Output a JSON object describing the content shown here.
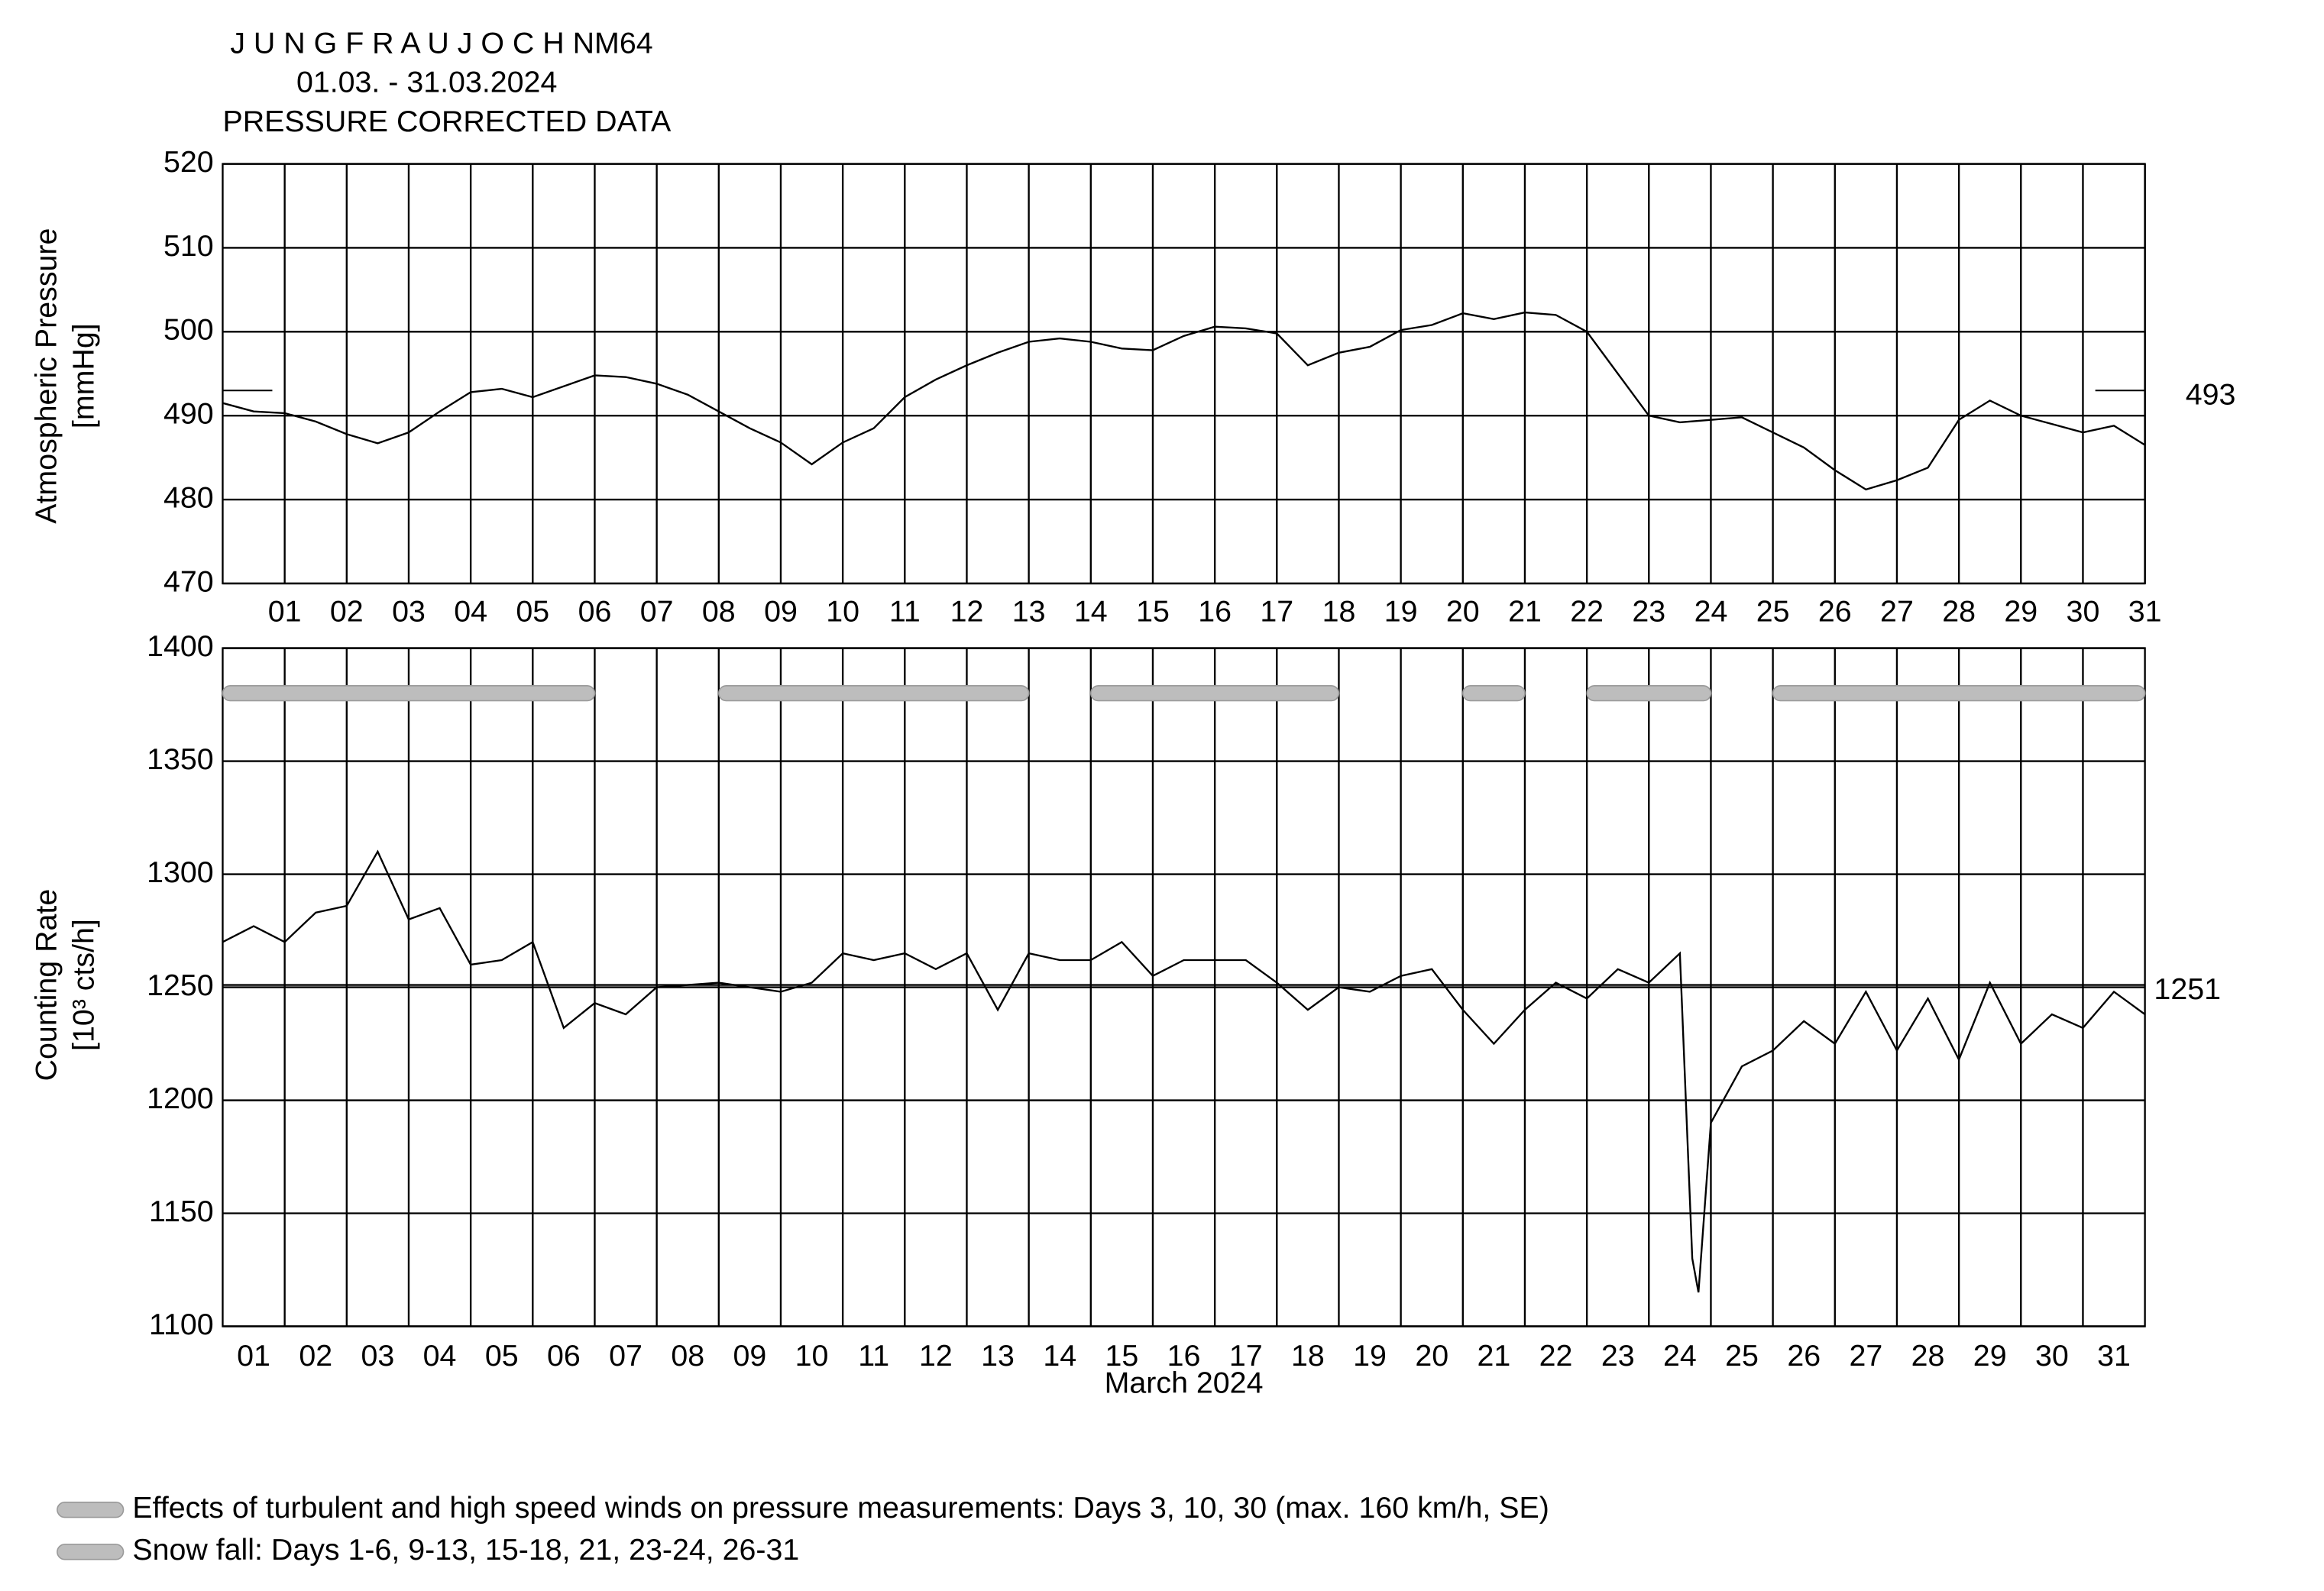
{
  "title": [
    "J U N G F R A U J O C H  NM64",
    "01.03. - 31.03.2024",
    "PRESSURE CORRECTED DATA"
  ],
  "legend": [
    "Effects of turbulent and high speed winds on pressure measurements: Days 3, 10, 30 (max. 160 km/h, SE)",
    "Snow fall: Days 1-6, 9-13, 15-18, 21, 23-24, 26-31"
  ],
  "legend_color": "#bdbdbd",
  "chart_data": [
    {
      "type": "line",
      "ylabel": [
        "Atmospheric Pressure",
        "[mmHg]"
      ],
      "x": [
        1,
        1.5,
        2,
        2.5,
        3,
        3.5,
        4,
        4.5,
        5,
        5.5,
        6,
        6.5,
        7,
        7.5,
        8,
        8.5,
        9,
        9.5,
        10,
        10.5,
        11,
        11.5,
        12,
        12.5,
        13,
        13.5,
        14,
        14.5,
        15,
        15.5,
        16,
        16.5,
        17,
        17.5,
        18,
        18.5,
        19,
        19.5,
        20,
        20.5,
        21,
        21.5,
        22,
        22.5,
        23,
        23.5,
        24,
        24.5,
        25,
        25.5,
        26,
        26.5,
        27,
        27.5,
        28,
        28.5,
        29,
        29.5,
        30,
        30.5,
        31,
        31.5,
        32
      ],
      "series": [
        {
          "color": "#000000",
          "values": [
            491.5,
            490.5,
            490.3,
            489.3,
            487.8,
            486.7,
            488,
            490.5,
            492.8,
            493.2,
            492.2,
            493.5,
            494.8,
            494.6,
            493.8,
            492.5,
            490.5,
            488.5,
            486.8,
            484.2,
            486.8,
            488.5,
            492.2,
            494.3,
            496,
            497.5,
            498.8,
            499.2,
            498.8,
            498,
            497.8,
            499.5,
            500.6,
            500.4,
            499.8,
            496,
            497.5,
            498.2,
            500.2,
            500.8,
            502.2,
            501.5,
            502.3,
            502,
            500,
            495,
            490,
            489.2,
            489.5,
            489.8,
            488,
            486.2,
            483.5,
            481.2,
            482.3,
            483.8,
            489.5,
            491.8,
            490,
            489,
            488,
            488.8,
            486.5
          ]
        }
      ],
      "reference": 493,
      "xlim": [
        1,
        32
      ],
      "xticks": [
        {
          "value": 2,
          "label": "01"
        },
        {
          "value": 3,
          "label": "02"
        },
        {
          "value": 4,
          "label": "03"
        },
        {
          "value": 5,
          "label": "04"
        },
        {
          "value": 6,
          "label": "05"
        },
        {
          "value": 7,
          "label": "06"
        },
        {
          "value": 8,
          "label": "07"
        },
        {
          "value": 9,
          "label": "08"
        },
        {
          "value": 10,
          "label": "09"
        },
        {
          "value": 11,
          "label": "10"
        },
        {
          "value": 12,
          "label": "11"
        },
        {
          "value": 13,
          "label": "12"
        },
        {
          "value": 14,
          "label": "13"
        },
        {
          "value": 15,
          "label": "14"
        },
        {
          "value": 16,
          "label": "15"
        },
        {
          "value": 17,
          "label": "16"
        },
        {
          "value": 18,
          "label": "17"
        },
        {
          "value": 19,
          "label": "18"
        },
        {
          "value": 20,
          "label": "19"
        },
        {
          "value": 21,
          "label": "20"
        },
        {
          "value": 22,
          "label": "21"
        },
        {
          "value": 23,
          "label": "22"
        },
        {
          "value": 24,
          "label": "23"
        },
        {
          "value": 25,
          "label": "24"
        },
        {
          "value": 26,
          "label": "25"
        },
        {
          "value": 27,
          "label": "26"
        },
        {
          "value": 28,
          "label": "27"
        },
        {
          "value": 29,
          "label": "28"
        },
        {
          "value": 30,
          "label": "29"
        },
        {
          "value": 31,
          "label": "30"
        },
        {
          "value": 32,
          "label": "31"
        }
      ],
      "ylim": [
        470,
        520
      ],
      "yticks": [
        470,
        480,
        490,
        500,
        510,
        520
      ],
      "grid": true
    },
    {
      "type": "line",
      "ylabel": [
        "Counting Rate",
        "[10³ cts/h]"
      ],
      "xlabel": "March 2024",
      "x": [
        1,
        1.5,
        2,
        2.5,
        3,
        3.5,
        4,
        4.5,
        5,
        5.5,
        6,
        6.5,
        7,
        7.5,
        8,
        8.5,
        9,
        9.5,
        10,
        10.5,
        11,
        11.5,
        12,
        12.5,
        13,
        13.5,
        14,
        14.5,
        15,
        15.5,
        16,
        16.5,
        17,
        17.5,
        18,
        18.5,
        19,
        19.5,
        20,
        20.5,
        21,
        21.5,
        22,
        22.5,
        23,
        23.5,
        24,
        24.5,
        24.7,
        24.8,
        25,
        25.5,
        26,
        26.5,
        27,
        27.5,
        28,
        28.5,
        29,
        29.5,
        30,
        30.5,
        31,
        31.5,
        32
      ],
      "series": [
        {
          "color": "#000000",
          "values": [
            1270,
            1277,
            1270,
            1283,
            1286,
            1310,
            1280,
            1285,
            1260,
            1262,
            1270,
            1232,
            1243,
            1238,
            1250,
            1251,
            1252,
            1250,
            1248,
            1252,
            1265,
            1262,
            1265,
            1258,
            1265,
            1240,
            1265,
            1262,
            1262,
            1270,
            1255,
            1262,
            1262,
            1262,
            1252,
            1240,
            1250,
            1248,
            1255,
            1258,
            1240,
            1225,
            1240,
            1252,
            1245,
            1258,
            1252,
            1265,
            1130,
            1115,
            1190,
            1215,
            1222,
            1235,
            1225,
            1248,
            1222,
            1245,
            1218,
            1252,
            1225,
            1238,
            1232,
            1248,
            1238
          ]
        }
      ],
      "reference": 1251,
      "snow_periods": [
        [
          1,
          6
        ],
        [
          9,
          13
        ],
        [
          15,
          18
        ],
        [
          21,
          21
        ],
        [
          23,
          24
        ],
        [
          26,
          31
        ]
      ],
      "xlim": [
        1,
        32
      ],
      "xticks": [
        {
          "value": 1.5,
          "label": "01"
        },
        {
          "value": 2.5,
          "label": "02"
        },
        {
          "value": 3.5,
          "label": "03"
        },
        {
          "value": 4.5,
          "label": "04"
        },
        {
          "value": 5.5,
          "label": "05"
        },
        {
          "value": 6.5,
          "label": "06"
        },
        {
          "value": 7.5,
          "label": "07"
        },
        {
          "value": 8.5,
          "label": "08"
        },
        {
          "value": 9.5,
          "label": "09"
        },
        {
          "value": 10.5,
          "label": "10"
        },
        {
          "value": 11.5,
          "label": "11"
        },
        {
          "value": 12.5,
          "label": "12"
        },
        {
          "value": 13.5,
          "label": "13"
        },
        {
          "value": 14.5,
          "label": "14"
        },
        {
          "value": 15.5,
          "label": "15"
        },
        {
          "value": 16.5,
          "label": "16"
        },
        {
          "value": 17.5,
          "label": "17"
        },
        {
          "value": 18.5,
          "label": "18"
        },
        {
          "value": 19.5,
          "label": "19"
        },
        {
          "value": 20.5,
          "label": "20"
        },
        {
          "value": 21.5,
          "label": "21"
        },
        {
          "value": 22.5,
          "label": "22"
        },
        {
          "value": 23.5,
          "label": "23"
        },
        {
          "value": 24.5,
          "label": "24"
        },
        {
          "value": 25.5,
          "label": "25"
        },
        {
          "value": 26.5,
          "label": "26"
        },
        {
          "value": 27.5,
          "label": "27"
        },
        {
          "value": 28.5,
          "label": "28"
        },
        {
          "value": 29.5,
          "label": "29"
        },
        {
          "value": 30.5,
          "label": "30"
        },
        {
          "value": 31.5,
          "label": "31"
        }
      ],
      "ylim": [
        1100,
        1400
      ],
      "yticks": [
        1100,
        1150,
        1200,
        1250,
        1300,
        1350,
        1400
      ],
      "grid": true
    }
  ]
}
